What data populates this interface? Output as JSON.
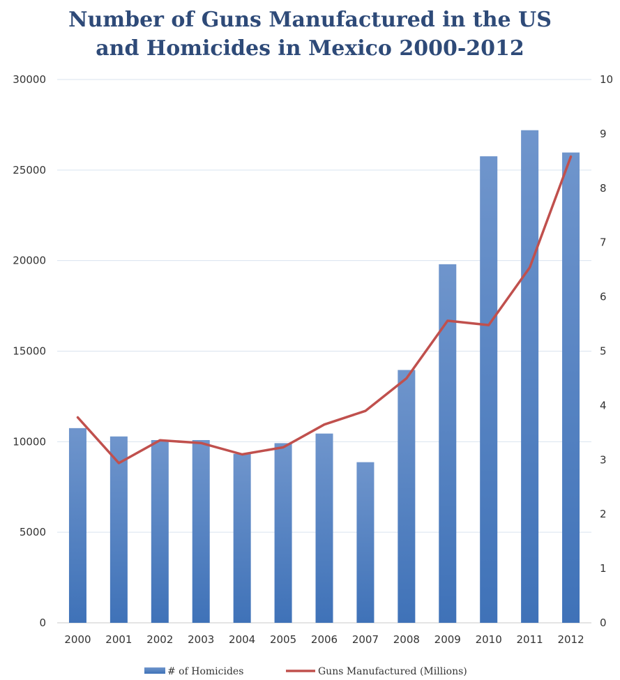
{
  "chart_data": {
    "type": "bar",
    "title_lines": [
      "Number of Guns Manufactured in the US",
      "and Homicides in Mexico 2000-2012"
    ],
    "categories": [
      "2000",
      "2001",
      "2002",
      "2003",
      "2004",
      "2005",
      "2006",
      "2007",
      "2008",
      "2009",
      "2010",
      "2011",
      "2012"
    ],
    "series": [
      {
        "name": "# of Homicides",
        "type": "bar",
        "axis": "left",
        "color": "#4f7fc0",
        "values": [
          10750,
          10290,
          10090,
          10090,
          9330,
          9920,
          10450,
          8870,
          13960,
          19800,
          25760,
          27200,
          25970
        ]
      },
      {
        "name": "Guns Manufactured (Millions)",
        "type": "line",
        "axis": "right",
        "color": "#c0504d",
        "values": [
          3.78,
          2.94,
          3.36,
          3.31,
          3.1,
          3.23,
          3.65,
          3.9,
          4.5,
          5.56,
          5.48,
          6.54,
          8.58
        ]
      }
    ],
    "y_left": {
      "ylim": [
        0,
        30000
      ],
      "ticks": [
        "0",
        "5000",
        "10000",
        "15000",
        "20000",
        "25000",
        "30000"
      ]
    },
    "y_right": {
      "ylim": [
        0,
        10
      ],
      "ticks": [
        "0",
        "1",
        "2",
        "3",
        "4",
        "5",
        "6",
        "7",
        "8",
        "9",
        "10"
      ]
    },
    "grid": true,
    "legend_position": "bottom"
  }
}
